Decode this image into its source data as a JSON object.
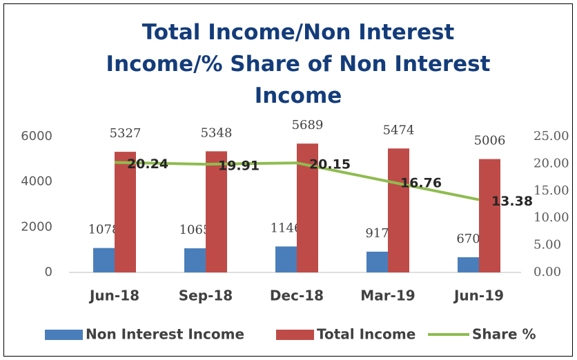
{
  "chart_data": {
    "type": "bar",
    "title": "Total Income/Non Interest Income/% Share of Non Interest Income",
    "categories": [
      "Jun-18",
      "Sep-18",
      "Dec-18",
      "Mar-19",
      "Jun-19"
    ],
    "series": [
      {
        "name": "Non Interest Income",
        "color": "#4a7ebb",
        "values": [
          1078,
          1065,
          1146,
          917,
          670
        ]
      },
      {
        "name": "Total Income",
        "color": "#be4b48",
        "values": [
          5327,
          5348,
          5689,
          5474,
          5006
        ]
      },
      {
        "name": "Share %",
        "color": "#8fbc4f",
        "type": "line",
        "axis": "y2",
        "values": [
          20.24,
          19.91,
          20.15,
          16.76,
          13.38
        ]
      }
    ],
    "ylim": [
      0,
      6000
    ],
    "yticks": [
      0,
      2000,
      4000,
      6000
    ],
    "y2lim": [
      0,
      25
    ],
    "y2ticks": [
      {
        "value": 0,
        "label": "0.00"
      },
      {
        "value": 5,
        "label": "5.00"
      },
      {
        "value": 10,
        "label": "10.00"
      },
      {
        "value": 15,
        "label": "15.00"
      },
      {
        "value": 20,
        "label": "20.00"
      },
      {
        "value": 25,
        "label": "25.00"
      }
    ],
    "legend": "bottom",
    "grid": false
  }
}
